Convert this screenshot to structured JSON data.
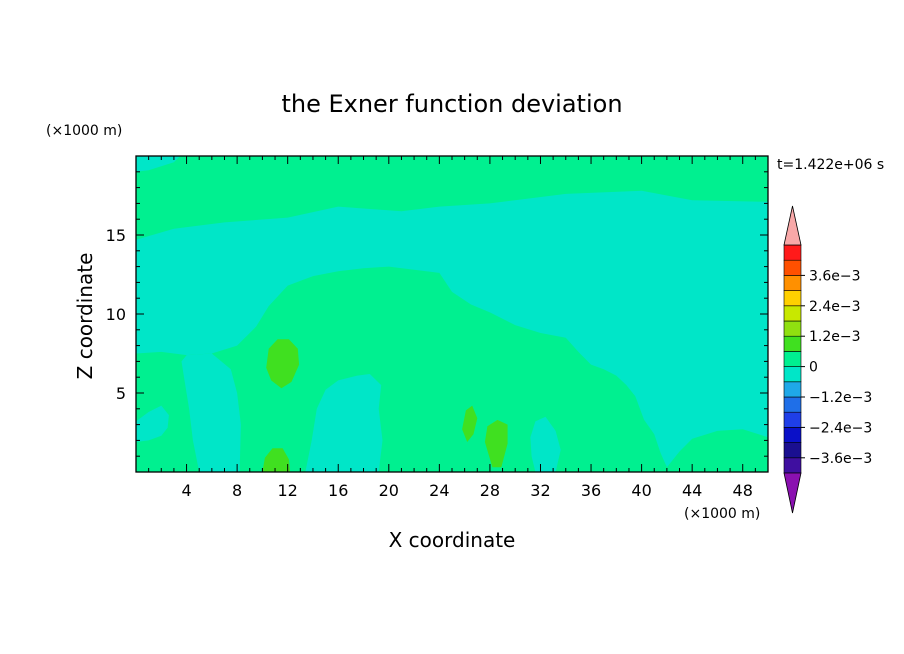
{
  "chart_data": {
    "type": "heatmap",
    "title": "the Exner function deviation",
    "xlabel": "X coordinate",
    "ylabel": "Z coordinate",
    "x_unit": "(×1000 m)",
    "y_unit": "(×1000 m)",
    "time_label": "t=1.422e+06 s",
    "xlim": [
      0,
      50
    ],
    "ylim": [
      0,
      20
    ],
    "x_ticks": [
      4,
      8,
      12,
      16,
      20,
      24,
      28,
      32,
      36,
      40,
      44,
      48
    ],
    "y_ticks": [
      5,
      10,
      15
    ],
    "colorbar": {
      "levels": [
        -0.0042,
        -0.0036,
        -0.003,
        -0.0024,
        -0.0018,
        -0.0012,
        -0.0006,
        0,
        0.0006,
        0.0012,
        0.0018,
        0.0024,
        0.003,
        0.0036,
        0.0042
      ],
      "colors": [
        "#3f0fa0",
        "#1a0f90",
        "#0a10c8",
        "#1f3fe8",
        "#1f6fe8",
        "#1fa8e8",
        "#00e6c8",
        "#00f090",
        "#40e020",
        "#90e010",
        "#c8e800",
        "#ffd000",
        "#ff9000",
        "#ff5000",
        "#ff1a1a"
      ],
      "under_color": "#8a10b0",
      "over_color": "#f8a8a8",
      "tick_labels": [
        "3.6e−3",
        "2.4e−3",
        "1.2e−3",
        "0",
        "−1.2e−3",
        "−2.4e−3",
        "−3.6e−3"
      ]
    },
    "regions": [
      {
        "value": 0.0003,
        "polygons": [
          [
            [
              0,
              17.1
            ],
            [
              5,
              17.3
            ],
            [
              8,
              16.8
            ],
            [
              10,
              17.5
            ],
            [
              12,
              18.5
            ],
            [
              14,
              19.8
            ],
            [
              15,
              20
            ],
            [
              50,
              20
            ],
            [
              50,
              17.1
            ],
            [
              44,
              17.2
            ],
            [
              40,
              17.8
            ],
            [
              34,
              17.6
            ],
            [
              28,
              17
            ],
            [
              24,
              16.8
            ],
            [
              21,
              16.5
            ],
            [
              16,
              16.8
            ],
            [
              12,
              16.1
            ],
            [
              7,
              15.8
            ],
            [
              3,
              15.4
            ],
            [
              0,
              14.7
            ]
          ]
        ]
      },
      {
        "value": -0.0003,
        "polygons": [
          [
            [
              0,
              20
            ],
            [
              3.5,
              20
            ],
            [
              3,
              19.6
            ],
            [
              1,
              19.1
            ],
            [
              0,
              19
            ]
          ],
          [
            [
              0,
              14.7
            ],
            [
              3,
              15.4
            ],
            [
              7,
              15.8
            ],
            [
              12,
              16.1
            ],
            [
              16,
              16.8
            ],
            [
              21,
              16.5
            ],
            [
              24,
              16.8
            ],
            [
              28,
              17
            ],
            [
              34,
              17.6
            ],
            [
              40,
              17.8
            ],
            [
              44,
              17.2
            ],
            [
              50,
              17.1
            ],
            [
              50,
              2.2
            ],
            [
              48,
              2.7
            ],
            [
              46,
              2.6
            ],
            [
              44,
              2.1
            ],
            [
              43,
              1.3
            ],
            [
              42,
              0.3
            ],
            [
              41.5,
              1.2
            ],
            [
              41,
              2.4
            ],
            [
              40.2,
              3.3
            ],
            [
              39.5,
              4.8
            ],
            [
              38.8,
              5.5
            ],
            [
              38,
              6.1
            ],
            [
              37,
              6.5
            ],
            [
              36,
              6.8
            ],
            [
              35,
              7.6
            ],
            [
              34,
              8.5
            ],
            [
              32,
              8.8
            ],
            [
              30,
              9.3
            ],
            [
              28,
              10.1
            ],
            [
              26.5,
              10.6
            ],
            [
              25,
              11.4
            ],
            [
              24,
              12.6
            ],
            [
              22,
              12.8
            ],
            [
              20,
              13
            ],
            [
              18,
              12.9
            ],
            [
              16,
              12.7
            ],
            [
              14,
              12.4
            ],
            [
              12,
              11.8
            ],
            [
              10.5,
              10.5
            ],
            [
              9.5,
              9.2
            ],
            [
              8,
              8
            ],
            [
              6,
              7.5
            ],
            [
              4,
              7.4
            ],
            [
              2,
              7.6
            ],
            [
              0,
              7.5
            ]
          ],
          [
            [
              0,
              3.2
            ],
            [
              1,
              3.8
            ],
            [
              2,
              4.2
            ],
            [
              2.6,
              3.6
            ],
            [
              2.5,
              2.8
            ],
            [
              2,
              2.3
            ],
            [
              1,
              2
            ],
            [
              0,
              1.9
            ]
          ],
          [
            [
              4,
              7.4
            ],
            [
              6,
              7.5
            ],
            [
              7.5,
              6.5
            ],
            [
              8,
              5
            ],
            [
              8.3,
              3
            ],
            [
              8.2,
              0
            ],
            [
              5,
              0
            ],
            [
              4.5,
              2
            ],
            [
              4.2,
              4
            ],
            [
              3.8,
              6
            ],
            [
              3.6,
              7
            ]
          ],
          [
            [
              13.4,
              0
            ],
            [
              13.9,
              2
            ],
            [
              14.3,
              4
            ],
            [
              15,
              5.2
            ],
            [
              16,
              5.8
            ],
            [
              17.5,
              6.1
            ],
            [
              18.5,
              6.2
            ],
            [
              19.4,
              5.5
            ],
            [
              19.2,
              4
            ],
            [
              19.5,
              2
            ],
            [
              19.2,
              0
            ]
          ],
          [
            [
              31.6,
              0
            ],
            [
              31.3,
              1
            ],
            [
              31.2,
              2.2
            ],
            [
              31.6,
              3.2
            ],
            [
              32.4,
              3.5
            ],
            [
              33.2,
              2.6
            ],
            [
              33.6,
              1.4
            ],
            [
              33.2,
              0
            ]
          ],
          [
            [
              44.5,
              4
            ],
            [
              44.5,
              6
            ],
            [
              44.8,
              8
            ],
            [
              45.5,
              9.8
            ],
            [
              46.5,
              10.8
            ],
            [
              48,
              11.1
            ],
            [
              50,
              11.3
            ],
            [
              50,
              4.2
            ],
            [
              48,
              4.1
            ],
            [
              46,
              3.9
            ]
          ]
        ]
      },
      {
        "value": 0.0009,
        "polygons": [
          [
            [
              10.3,
              6.6
            ],
            [
              10.5,
              7.8
            ],
            [
              11.2,
              8.4
            ],
            [
              12.1,
              8.4
            ],
            [
              12.8,
              7.8
            ],
            [
              12.9,
              6.8
            ],
            [
              12.3,
              5.7
            ],
            [
              11.5,
              5.3
            ],
            [
              10.7,
              5.8
            ]
          ],
          [
            [
              10,
              0
            ],
            [
              10.2,
              0.9
            ],
            [
              10.8,
              1.5
            ],
            [
              11.6,
              1.5
            ],
            [
              12.1,
              0.8
            ],
            [
              12.2,
              0
            ]
          ],
          [
            [
              27.6,
              1.9
            ],
            [
              27.8,
              2.9
            ],
            [
              28.6,
              3.3
            ],
            [
              29.4,
              3
            ],
            [
              29.4,
              1.8
            ],
            [
              28.9,
              0.3
            ],
            [
              28.2,
              0.3
            ]
          ],
          [
            [
              25.8,
              2.7
            ],
            [
              26.1,
              3.9
            ],
            [
              26.6,
              4.2
            ],
            [
              27,
              3.4
            ],
            [
              26.7,
              2.4
            ],
            [
              26.2,
              1.9
            ]
          ]
        ]
      }
    ]
  }
}
